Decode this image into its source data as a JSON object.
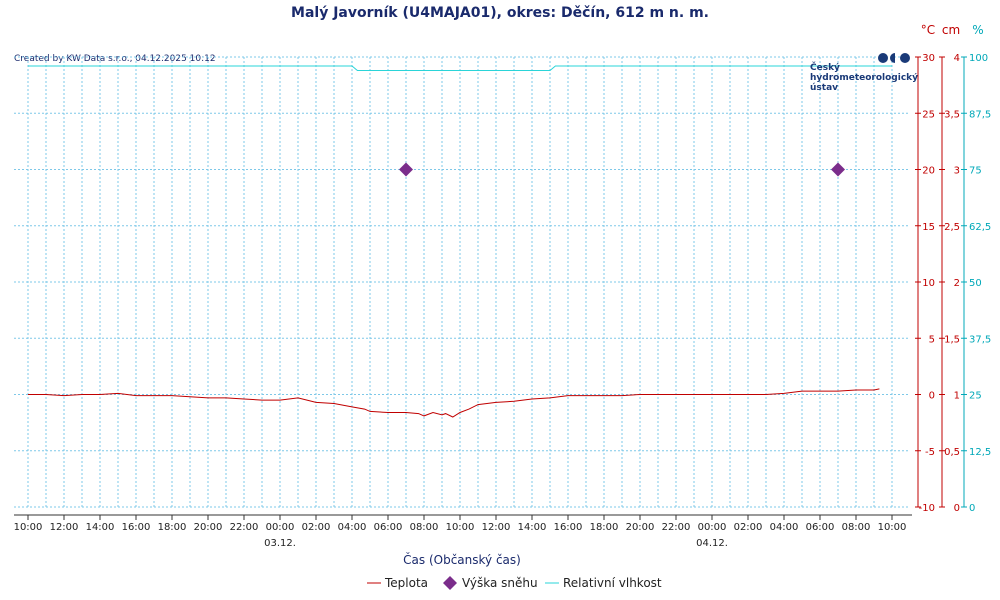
{
  "chart_data": {
    "type": "line",
    "title": "Malý Javorník (U4MAJA01), okres: Děčín, 612 m n. m.",
    "credit": "Created by KW Data s.r.o., 04.12.2025 10:12",
    "xlabel": "Čas (Občanský čas)",
    "x_ticks": [
      "10:00",
      "12:00",
      "14:00",
      "16:00",
      "18:00",
      "20:00",
      "22:00",
      "00:00",
      "02:00",
      "04:00",
      "06:00",
      "08:00",
      "10:00",
      "12:00",
      "14:00",
      "16:00",
      "18:00",
      "20:00",
      "22:00",
      "00:00",
      "02:00",
      "04:00",
      "06:00",
      "08:00",
      "10:00"
    ],
    "date_labels": [
      {
        "text": "03.12.",
        "tick_index": 7
      },
      {
        "text": "04.12.",
        "tick_index": 19
      }
    ],
    "x_range_hours": [
      0,
      48
    ],
    "axes": {
      "temperature": {
        "unit": "°C",
        "range": [
          -10,
          30
        ],
        "ticks": [
          "-10",
          "-5",
          "0",
          "5",
          "10",
          "15",
          "20",
          "25",
          "30"
        ],
        "color": "#c00000"
      },
      "snow": {
        "unit": "cm",
        "range": [
          0,
          4
        ],
        "ticks": [
          "0",
          "0,5",
          "1",
          "1,5",
          "2",
          "2,5",
          "3",
          "3,5",
          "4"
        ],
        "color": "#c00000"
      },
      "humidity": {
        "unit": "%",
        "range": [
          0,
          100
        ],
        "ticks": [
          "0",
          "12,5",
          "25",
          "37,5",
          "50",
          "62,5",
          "75",
          "87,5",
          "100"
        ],
        "color": "#00a8b8"
      }
    },
    "grid": true,
    "series": [
      {
        "name": "Teplota",
        "axis": "temperature",
        "color": "#c00000",
        "kind": "line",
        "x": [
          0,
          1,
          2,
          3,
          4,
          5,
          6,
          7,
          8,
          9,
          10,
          11,
          12,
          13,
          14,
          15,
          16,
          17,
          18,
          18.7,
          19,
          20,
          21,
          21.7,
          22,
          22.5,
          23,
          23.2,
          23.6,
          24,
          24.5,
          25,
          26,
          27,
          28,
          29,
          30,
          31,
          32,
          33,
          34,
          35,
          36,
          37,
          38,
          39,
          40,
          41,
          42,
          43,
          44,
          45,
          46,
          47,
          47.3
        ],
        "y": [
          0.0,
          0.0,
          -0.1,
          0.0,
          0.0,
          0.1,
          -0.1,
          -0.1,
          -0.1,
          -0.2,
          -0.3,
          -0.3,
          -0.4,
          -0.5,
          -0.5,
          -0.3,
          -0.7,
          -0.8,
          -1.1,
          -1.3,
          -1.5,
          -1.6,
          -1.6,
          -1.7,
          -1.9,
          -1.6,
          -1.8,
          -1.7,
          -2.0,
          -1.6,
          -1.3,
          -0.9,
          -0.7,
          -0.6,
          -0.4,
          -0.3,
          -0.1,
          -0.1,
          -0.1,
          -0.1,
          0.0,
          0.0,
          0.0,
          0.0,
          0.0,
          0.0,
          0.0,
          0.0,
          0.1,
          0.3,
          0.3,
          0.3,
          0.4,
          0.4,
          0.5
        ]
      },
      {
        "name": "Výška sněhu",
        "axis": "snow",
        "color": "#7b2d8b",
        "kind": "marker",
        "x": [
          21,
          45
        ],
        "y": [
          3,
          3
        ]
      },
      {
        "name": "Relativní vlhkost",
        "axis": "humidity",
        "color": "#2ad4d8",
        "kind": "line",
        "x": [
          0,
          18,
          18.3,
          29,
          29.3,
          48
        ],
        "y": [
          98,
          98,
          97,
          97,
          98,
          98
        ]
      }
    ],
    "legend": [
      {
        "label": "Teplota",
        "color": "#c00000",
        "symbol": "line"
      },
      {
        "label": "Výška sněhu",
        "color": "#7b2d8b",
        "symbol": "diamond"
      },
      {
        "label": "Relativní vlhkost",
        "color": "#2ad4d8",
        "symbol": "line"
      }
    ],
    "legend_position": "bottom-center"
  },
  "logo": {
    "lines": [
      "Český",
      "hydrometeorologický",
      "ústav"
    ],
    "color": "#1a3a78"
  }
}
